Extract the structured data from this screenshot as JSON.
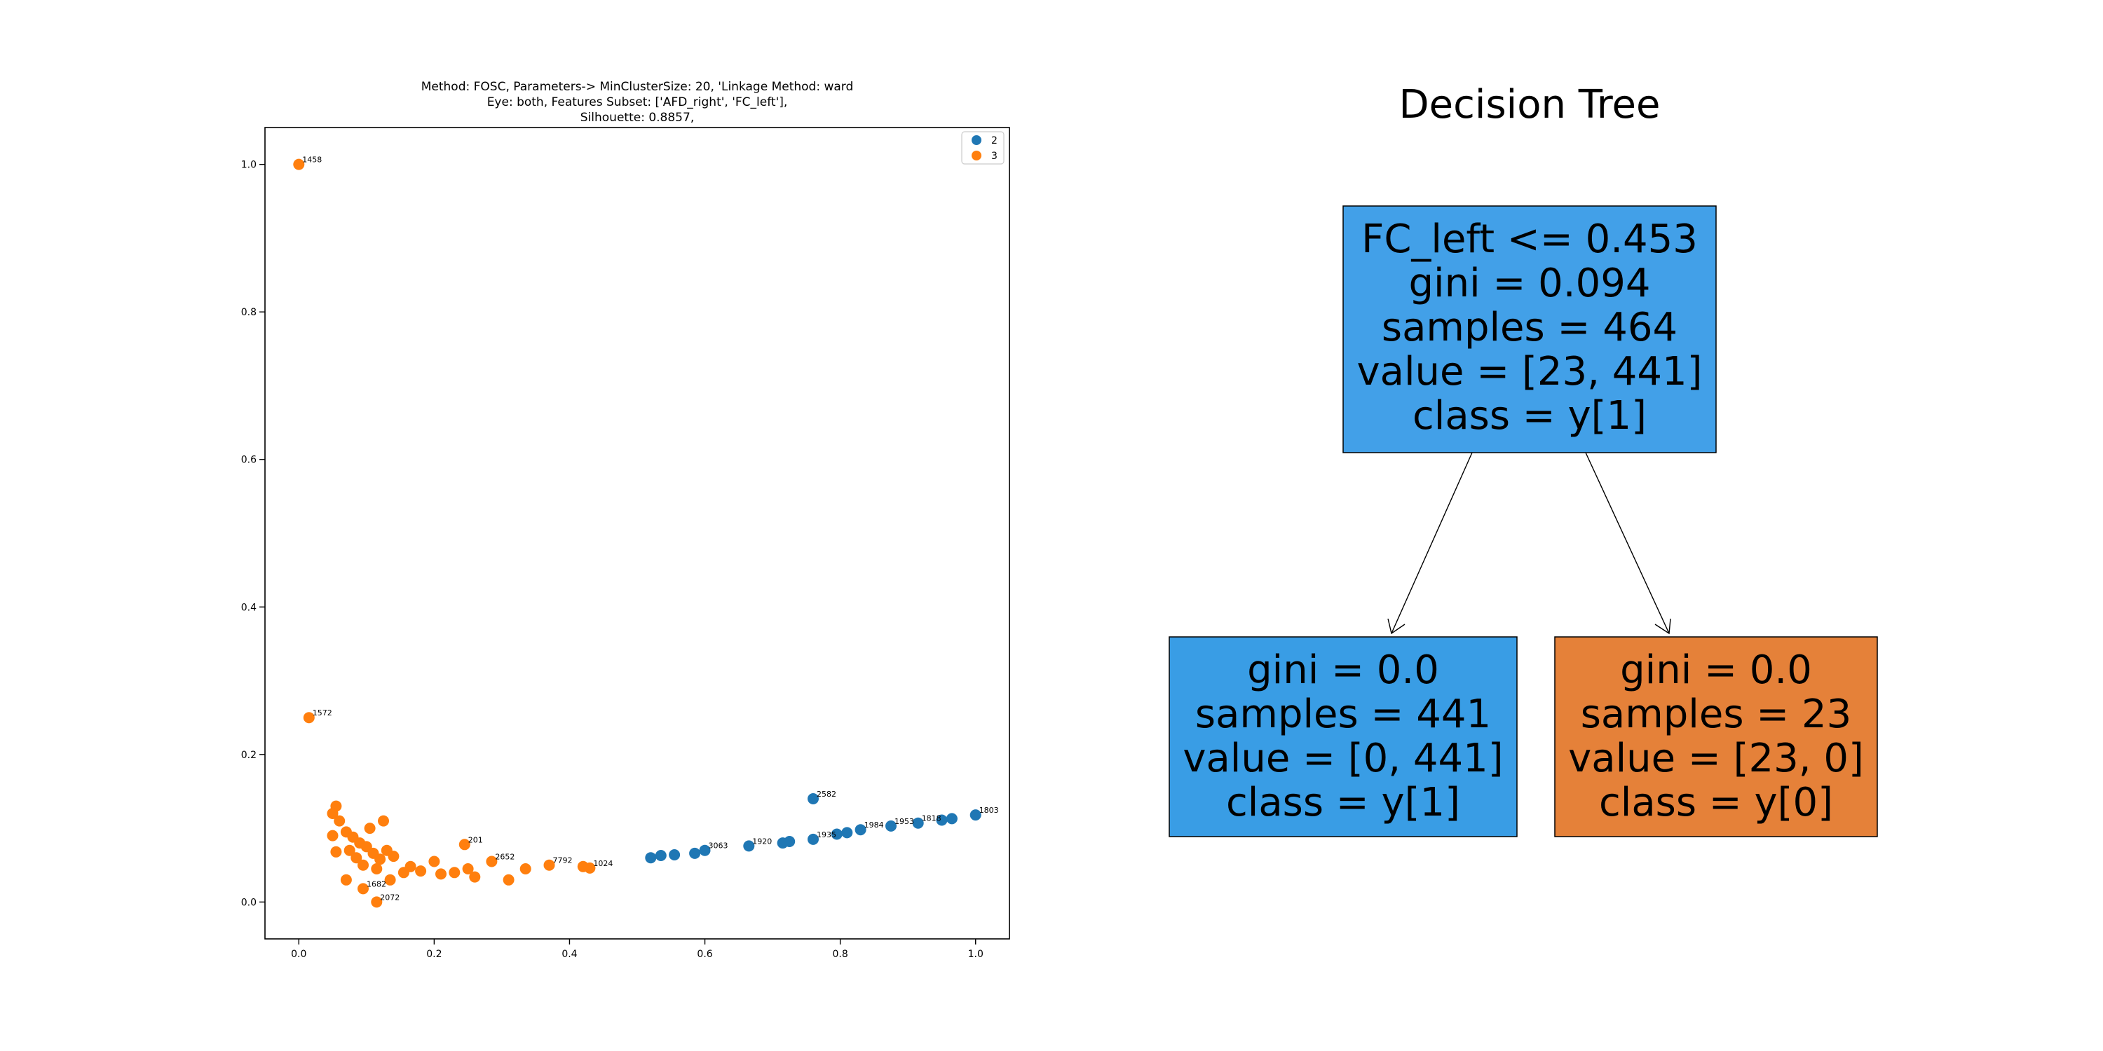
{
  "scatter": {
    "title_lines": [
      "Method: FOSC, Parameters-> MinClusterSize: 20, 'Linkage Method: ward",
      "Eye: both, Features Subset: ['AFD_right', 'FC_left'],",
      "Silhouette: 0.8857,"
    ],
    "legend": [
      {
        "label": "2",
        "color": "#1f77b4"
      },
      {
        "label": "3",
        "color": "#ff7f0e"
      }
    ]
  },
  "tree": {
    "title": "Decision Tree",
    "nodes": [
      {
        "lines": [
          "FC_left <= 0.453",
          "gini = 0.094",
          "samples = 464",
          "value = [23, 441]",
          "class = y[1]"
        ],
        "color": "#42a0e8"
      },
      {
        "lines": [
          "gini = 0.0",
          "samples = 441",
          "value = [0, 441]",
          "class = y[1]"
        ],
        "color": "#399de5"
      },
      {
        "lines": [
          "gini = 0.0",
          "samples = 23",
          "value = [23, 0]",
          "class = y[0]"
        ],
        "color": "#e58139"
      }
    ]
  },
  "chart_data": [
    {
      "type": "scatter",
      "title": "Method: FOSC, Parameters-> MinClusterSize: 20, 'Linkage Method: ward\nEye: both, Features Subset: ['AFD_right', 'FC_left'],\nSilhouette: 0.8857,",
      "xlabel": "",
      "ylabel": "",
      "xlim": [
        -0.05,
        1.05
      ],
      "ylim": [
        -0.05,
        1.05
      ],
      "xticks": [
        "0.0",
        "0.2",
        "0.4",
        "0.6",
        "0.8",
        "1.0"
      ],
      "yticks": [
        "0.0",
        "0.2",
        "0.4",
        "0.6",
        "0.8",
        "1.0"
      ],
      "legend_position": "top-right",
      "series": [
        {
          "name": "2",
          "color": "#1f77b4",
          "points": [
            {
              "x": 0.52,
              "y": 0.06,
              "label": ""
            },
            {
              "x": 0.535,
              "y": 0.063,
              "label": ""
            },
            {
              "x": 0.555,
              "y": 0.064,
              "label": ""
            },
            {
              "x": 0.585,
              "y": 0.066,
              "label": ""
            },
            {
              "x": 0.6,
              "y": 0.07,
              "label": "3063"
            },
            {
              "x": 0.665,
              "y": 0.076,
              "label": "1920"
            },
            {
              "x": 0.715,
              "y": 0.08,
              "label": ""
            },
            {
              "x": 0.725,
              "y": 0.082,
              "label": ""
            },
            {
              "x": 0.76,
              "y": 0.085,
              "label": "1935"
            },
            {
              "x": 0.76,
              "y": 0.14,
              "label": "2582"
            },
            {
              "x": 0.795,
              "y": 0.092,
              "label": ""
            },
            {
              "x": 0.81,
              "y": 0.094,
              "label": ""
            },
            {
              "x": 0.83,
              "y": 0.098,
              "label": "1984"
            },
            {
              "x": 0.875,
              "y": 0.103,
              "label": "1953"
            },
            {
              "x": 0.915,
              "y": 0.107,
              "label": "1818"
            },
            {
              "x": 0.95,
              "y": 0.111,
              "label": ""
            },
            {
              "x": 0.965,
              "y": 0.113,
              "label": ""
            },
            {
              "x": 1.0,
              "y": 0.118,
              "label": "1803"
            }
          ]
        },
        {
          "name": "3",
          "color": "#ff7f0e",
          "points": [
            {
              "x": 0.0,
              "y": 1.0,
              "label": "1458"
            },
            {
              "x": 0.015,
              "y": 0.25,
              "label": "1572"
            },
            {
              "x": 0.055,
              "y": 0.13,
              "label": ""
            },
            {
              "x": 0.05,
              "y": 0.12,
              "label": ""
            },
            {
              "x": 0.06,
              "y": 0.11,
              "label": ""
            },
            {
              "x": 0.05,
              "y": 0.09,
              "label": ""
            },
            {
              "x": 0.055,
              "y": 0.068,
              "label": ""
            },
            {
              "x": 0.07,
              "y": 0.095,
              "label": ""
            },
            {
              "x": 0.08,
              "y": 0.088,
              "label": ""
            },
            {
              "x": 0.09,
              "y": 0.08,
              "label": ""
            },
            {
              "x": 0.075,
              "y": 0.07,
              "label": ""
            },
            {
              "x": 0.085,
              "y": 0.06,
              "label": ""
            },
            {
              "x": 0.1,
              "y": 0.075,
              "label": ""
            },
            {
              "x": 0.11,
              "y": 0.066,
              "label": ""
            },
            {
              "x": 0.12,
              "y": 0.058,
              "label": ""
            },
            {
              "x": 0.13,
              "y": 0.07,
              "label": ""
            },
            {
              "x": 0.14,
              "y": 0.062,
              "label": ""
            },
            {
              "x": 0.095,
              "y": 0.05,
              "label": ""
            },
            {
              "x": 0.115,
              "y": 0.045,
              "label": ""
            },
            {
              "x": 0.105,
              "y": 0.1,
              "label": ""
            },
            {
              "x": 0.125,
              "y": 0.11,
              "label": ""
            },
            {
              "x": 0.07,
              "y": 0.03,
              "label": ""
            },
            {
              "x": 0.095,
              "y": 0.018,
              "label": "1682"
            },
            {
              "x": 0.115,
              "y": 0.0,
              "label": "2072"
            },
            {
              "x": 0.135,
              "y": 0.03,
              "label": ""
            },
            {
              "x": 0.155,
              "y": 0.04,
              "label": ""
            },
            {
              "x": 0.165,
              "y": 0.048,
              "label": ""
            },
            {
              "x": 0.18,
              "y": 0.042,
              "label": ""
            },
            {
              "x": 0.2,
              "y": 0.055,
              "label": ""
            },
            {
              "x": 0.21,
              "y": 0.038,
              "label": ""
            },
            {
              "x": 0.23,
              "y": 0.04,
              "label": ""
            },
            {
              "x": 0.245,
              "y": 0.078,
              "label": "201"
            },
            {
              "x": 0.25,
              "y": 0.045,
              "label": ""
            },
            {
              "x": 0.26,
              "y": 0.034,
              "label": ""
            },
            {
              "x": 0.285,
              "y": 0.055,
              "label": "2652"
            },
            {
              "x": 0.31,
              "y": 0.03,
              "label": ""
            },
            {
              "x": 0.335,
              "y": 0.045,
              "label": ""
            },
            {
              "x": 0.37,
              "y": 0.05,
              "label": "7792"
            },
            {
              "x": 0.42,
              "y": 0.048,
              "label": ""
            },
            {
              "x": 0.43,
              "y": 0.046,
              "label": "1024"
            }
          ]
        }
      ]
    },
    {
      "type": "tree",
      "title": "Decision Tree",
      "edges": [
        [
          0,
          1
        ],
        [
          0,
          2
        ]
      ]
    }
  ]
}
